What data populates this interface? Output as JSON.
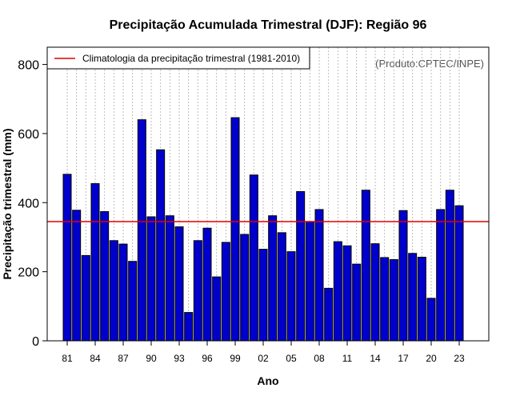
{
  "chart_data": {
    "type": "bar",
    "title": "Precipitação Acumulada Trimestral (DJF): Região 96",
    "xlabel": "Ano",
    "ylabel": "Precipitação trimestral (mm)",
    "ylim": [
      0,
      850
    ],
    "yticks": [
      0,
      200,
      400,
      600,
      800
    ],
    "grid": "vertical dotted",
    "legend": {
      "placement": "top-left",
      "label": "Climatologia da precipitação trimestral (1981-2010)"
    },
    "credit": "(Produto:CPTEC/INPE)",
    "climatology": 345,
    "categories": [
      "81",
      "82",
      "83",
      "84",
      "85",
      "86",
      "87",
      "88",
      "89",
      "90",
      "91",
      "92",
      "93",
      "94",
      "95",
      "96",
      "97",
      "98",
      "99",
      "00",
      "01",
      "02",
      "03",
      "04",
      "05",
      "06",
      "07",
      "08",
      "09",
      "10",
      "11",
      "12",
      "13",
      "14",
      "15",
      "16",
      "17",
      "18",
      "19",
      "20",
      "21",
      "22",
      "23"
    ],
    "xtick_labels": [
      "81",
      "84",
      "87",
      "90",
      "93",
      "96",
      "99",
      "02",
      "05",
      "08",
      "11",
      "14",
      "17",
      "20",
      "23"
    ],
    "values": [
      482,
      378,
      247,
      455,
      374,
      290,
      280,
      230,
      640,
      359,
      553,
      362,
      330,
      82,
      290,
      326,
      185,
      285,
      646,
      308,
      480,
      265,
      362,
      313,
      258,
      432,
      345,
      380,
      152,
      287,
      275,
      222,
      436,
      281,
      241,
      235,
      377,
      253,
      242,
      123,
      380,
      436,
      391
    ],
    "colors": {
      "bar": "#0000cc",
      "bar_edge": "#000000",
      "climatology": "#e00000",
      "grid": "#bbbbbb"
    }
  }
}
